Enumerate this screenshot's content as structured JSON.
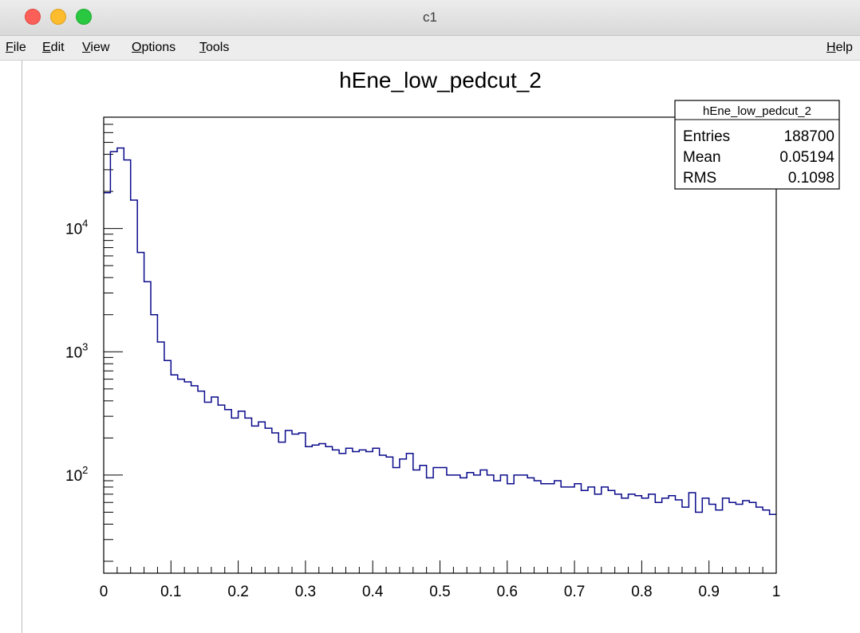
{
  "window": {
    "title": "c1"
  },
  "menubar": {
    "items": [
      "File",
      "Edit",
      "View",
      "Options",
      "Tools"
    ],
    "help": "Help"
  },
  "stats_box": {
    "title": "hEne_low_pedcut_2",
    "rows": [
      {
        "label": "Entries",
        "value": "188700"
      },
      {
        "label": "Mean",
        "value": "0.05194"
      },
      {
        "label": "RMS",
        "value": "0.1098"
      }
    ]
  },
  "colors": {
    "histogram_line": "#0a0a8c",
    "frame": "#000000"
  },
  "chart_data": {
    "type": "histogram",
    "title": "hEne_low_pedcut_2",
    "xlabel": "",
    "ylabel": "",
    "xlim": [
      0,
      1
    ],
    "ylim": [
      16,
      80000
    ],
    "yscale": "log",
    "grid": false,
    "x_ticks": [
      "0",
      "0.1",
      "0.2",
      "0.3",
      "0.4",
      "0.5",
      "0.6",
      "0.7",
      "0.8",
      "0.9",
      "1"
    ],
    "y_ticks": [
      {
        "base": "10",
        "exp": "2",
        "value": 100
      },
      {
        "base": "10",
        "exp": "3",
        "value": 1000
      },
      {
        "base": "10",
        "exp": "4",
        "value": 10000
      }
    ],
    "bin_edges_start": 0,
    "bin_width": 0.01,
    "values": [
      19500,
      42000,
      45000,
      36000,
      17000,
      6400,
      3700,
      2000,
      1200,
      850,
      650,
      600,
      570,
      530,
      480,
      390,
      430,
      370,
      340,
      290,
      330,
      290,
      250,
      270,
      240,
      220,
      185,
      230,
      215,
      220,
      170,
      175,
      180,
      170,
      160,
      150,
      165,
      155,
      160,
      155,
      165,
      145,
      140,
      115,
      135,
      150,
      110,
      120,
      95,
      115,
      115,
      100,
      100,
      95,
      105,
      100,
      110,
      100,
      90,
      100,
      85,
      100,
      100,
      95,
      90,
      85,
      85,
      90,
      80,
      80,
      85,
      75,
      80,
      70,
      80,
      75,
      70,
      65,
      70,
      68,
      65,
      70,
      60,
      65,
      68,
      63,
      55,
      72,
      50,
      65,
      58,
      52,
      65,
      60,
      58,
      62,
      60,
      55,
      52,
      48
    ]
  }
}
